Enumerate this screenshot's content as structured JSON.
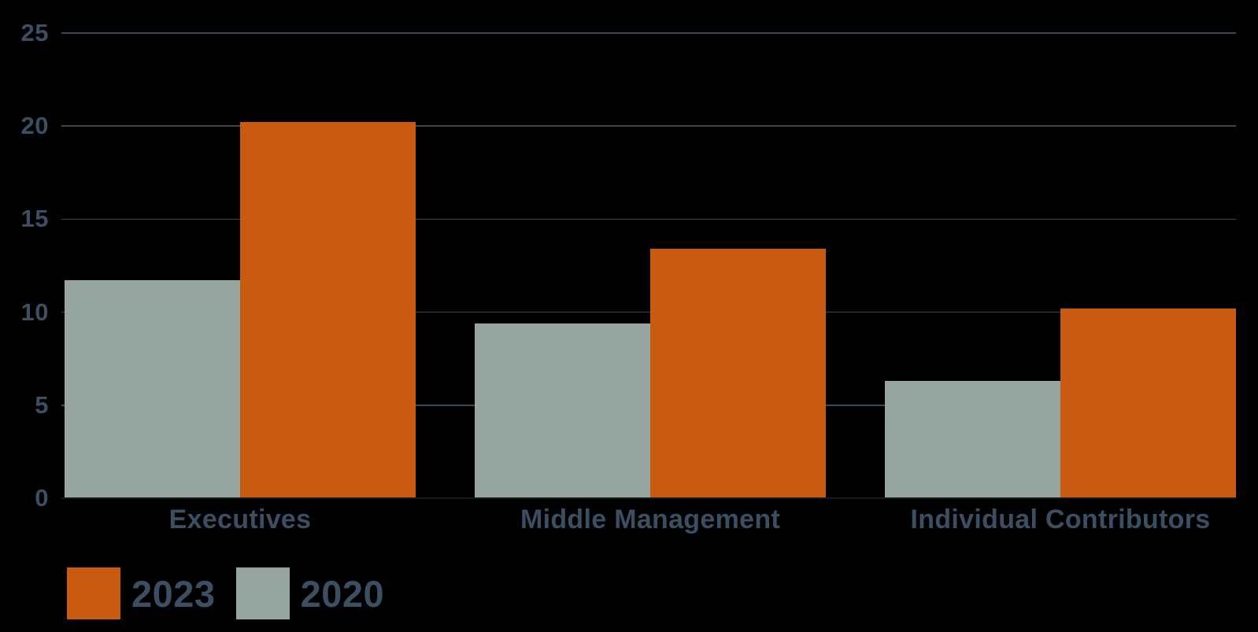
{
  "chart_data": {
    "type": "bar",
    "categories": [
      "Executives",
      "Middle Management",
      "Individual Contributors"
    ],
    "series": [
      {
        "name": "2023",
        "color": "#c85a12",
        "values": [
          20.2,
          13.4,
          10.2
        ]
      },
      {
        "name": "2020",
        "color": "#96a5a0",
        "values": [
          11.7,
          9.4,
          6.3
        ]
      }
    ],
    "group_bar_order": [
      "2020",
      "2023"
    ],
    "ylim": [
      0,
      25
    ],
    "yticks": [
      0,
      5,
      10,
      15,
      20,
      25
    ],
    "grid": "horizontal",
    "legend_position": "bottom-left",
    "background_color": "#000000",
    "text_color": "#3c4e61",
    "gridline_color": "#3a4a57"
  }
}
